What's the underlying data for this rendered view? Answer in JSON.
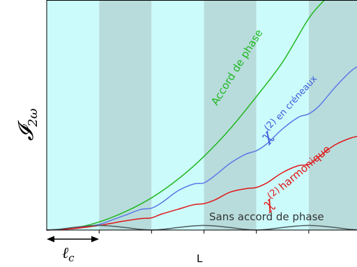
{
  "chart_data": {
    "type": "line",
    "title": "",
    "xlabel": "L",
    "ylabel": "𝓘",
    "ylabel_subscript": "2ω",
    "coherence_length_label": "ℓ",
    "coherence_length_subscript": "c",
    "xlim": [
      0,
      6
    ],
    "ylim": [
      0,
      1
    ],
    "coherence_segments": 6,
    "shading": {
      "light": "#ccfbfb",
      "dark": "#b8dcdc"
    },
    "grid": false,
    "legend": "none",
    "series": [
      {
        "key": "phase_matching",
        "name": "Accord de phase",
        "color": "#20b820",
        "x": [
          0,
          0.5,
          1,
          1.5,
          2,
          2.5,
          3,
          3.5,
          4,
          4.5,
          5,
          5.3
        ],
        "y": [
          0,
          0.008,
          0.035,
          0.08,
          0.14,
          0.22,
          0.32,
          0.44,
          0.58,
          0.73,
          0.92,
          1.0
        ]
      },
      {
        "key": "square_qpm",
        "name_prefix": "χ",
        "name_superscript": "(2)",
        "name_suffix": "en créneaux",
        "color": "#5b78e6",
        "x": [
          0,
          0.5,
          1,
          1.2,
          1.5,
          1.8,
          2,
          2.2,
          2.5,
          2.8,
          3,
          3.2,
          3.5,
          3.8,
          4,
          4.2,
          4.5,
          4.8,
          5,
          5.2,
          5.5,
          5.8,
          6
        ],
        "y": [
          0,
          0.007,
          0.025,
          0.04,
          0.065,
          0.09,
          0.095,
          0.12,
          0.17,
          0.2,
          0.205,
          0.235,
          0.29,
          0.33,
          0.345,
          0.375,
          0.44,
          0.49,
          0.505,
          0.54,
          0.62,
          0.69,
          0.72
        ]
      },
      {
        "key": "harmonic_qpm",
        "name_prefix": "χ",
        "name_superscript": "(2)",
        "name_suffix": "harmonique",
        "color": "#e01616",
        "x": [
          0,
          0.5,
          1,
          1.2,
          1.5,
          1.8,
          2,
          2.2,
          2.5,
          2.8,
          3,
          3.2,
          3.5,
          3.8,
          4,
          4.2,
          4.5,
          4.8,
          5,
          5.2,
          5.5,
          5.8,
          6
        ],
        "y": [
          0,
          0.006,
          0.02,
          0.028,
          0.04,
          0.05,
          0.053,
          0.07,
          0.09,
          0.11,
          0.115,
          0.13,
          0.165,
          0.18,
          0.185,
          0.205,
          0.25,
          0.28,
          0.285,
          0.32,
          0.37,
          0.4,
          0.41
        ]
      },
      {
        "key": "no_phase_matching",
        "name": "Sans accord de phase",
        "color": "#4f5c5c",
        "x": [
          0,
          0.25,
          0.5,
          0.75,
          1,
          1.25,
          1.5,
          1.75,
          2,
          2.25,
          2.5,
          2.75,
          3,
          3.25,
          3.5,
          3.75,
          4,
          4.25,
          4.5,
          4.75,
          5,
          5.25,
          5.5,
          5.75,
          6
        ],
        "y": [
          0,
          0.004,
          0.011,
          0.017,
          0.02,
          0.017,
          0.011,
          0.004,
          0,
          0.004,
          0.011,
          0.017,
          0.02,
          0.017,
          0.011,
          0.004,
          0,
          0.004,
          0.011,
          0.017,
          0.02,
          0.017,
          0.011,
          0.004,
          0
        ]
      }
    ]
  }
}
